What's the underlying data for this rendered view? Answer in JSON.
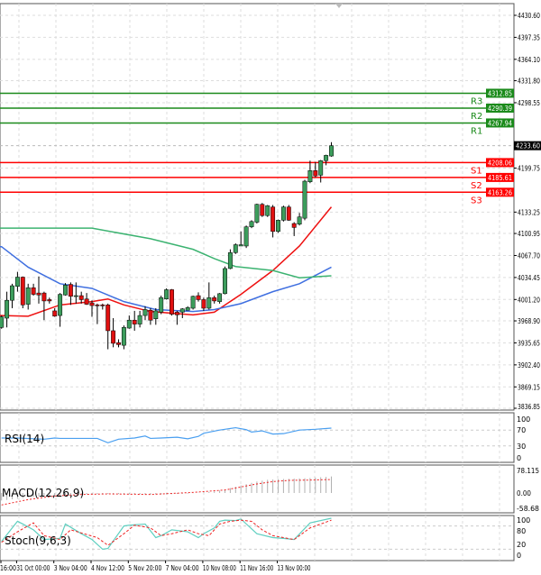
{
  "chart_data": {
    "type": "candlestick",
    "colors": {
      "bull": "#3c9d5c",
      "bear": "#e01010",
      "ma_fast": "#ee1111",
      "ma_mid": "#3f6fe0",
      "ma_slow": "#3cb371",
      "resistance": "#1a8a1a",
      "support": "#ff0000",
      "price_label": "#000000",
      "rsi": "#4a9ff0",
      "stoch_main": "#5fcfc0",
      "stoch_signal": "#ee2222",
      "macd_signal": "#ee2222",
      "macd_hist": "#b0b0b0"
    },
    "price_axis": {
      "ylim": [
        3836.85,
        4430.6
      ],
      "ticks": [
        "4430.60",
        "4397.35",
        "4364.10",
        "4331.80",
        "4298.55",
        "4199.75",
        "4133.25",
        "4100.95",
        "4067.70",
        "4034.45",
        "4001.20",
        "3968.90",
        "3935.65",
        "3902.40",
        "3869.15",
        "3836.85"
      ]
    },
    "time_axis": {
      "labels": [
        "16:00",
        "31 Oct 00:00",
        "3 Nov 04:00",
        "4 Nov 12:00",
        "5 Nov 20:00",
        "7 Nov 04:00",
        "10 Nov 08:00",
        "11 Nov 16:00",
        "13 Nov 00:00"
      ],
      "label_candles": [
        -1,
        3,
        10,
        17,
        24,
        31,
        38,
        45,
        52
      ]
    },
    "current_price": "4233.60",
    "levels": [
      {
        "name": "R3",
        "value": "4312.85",
        "kind": "resistance"
      },
      {
        "name": "R2",
        "value": "4290.39",
        "kind": "resistance"
      },
      {
        "name": "R1",
        "value": "4267.94",
        "kind": "resistance"
      },
      {
        "name": "S1",
        "value": "4208.06",
        "kind": "support"
      },
      {
        "name": "S2",
        "value": "4185.61",
        "kind": "support"
      },
      {
        "name": "S3",
        "value": "4163.26",
        "kind": "support"
      }
    ],
    "candles_ohlc": [
      [
        3959,
        3977,
        3957,
        3975
      ],
      [
        3973,
        4013,
        3959,
        4000
      ],
      [
        4000,
        4025,
        3988,
        4022
      ],
      [
        4021,
        4043,
        4013,
        4035
      ],
      [
        4035,
        4036,
        3988,
        3993
      ],
      [
        3994,
        4025,
        3986,
        4019
      ],
      [
        4019,
        4025,
        4007,
        4009
      ],
      [
        4011,
        4036,
        3995,
        4008
      ],
      [
        4011,
        4013,
        3970,
        3999
      ],
      [
        4001,
        4004,
        3995,
        3999
      ],
      [
        3984,
        3988,
        3975,
        3976
      ],
      [
        3977,
        4011,
        3960,
        4009
      ],
      [
        4008,
        4026,
        4007,
        4023
      ],
      [
        4024,
        4027,
        3993,
        4006
      ],
      [
        4006,
        4027,
        3995,
        4007
      ],
      [
        4007,
        4013,
        3995,
        4001
      ],
      [
        4002,
        4011,
        3993,
        3994
      ],
      [
        3996,
        4000,
        3975,
        3992
      ],
      [
        3993,
        3995,
        3964,
        3992
      ],
      [
        3993,
        3995,
        3986,
        3992
      ],
      [
        3993,
        3995,
        3926,
        3954
      ],
      [
        3954,
        3973,
        3929,
        3935
      ],
      [
        3936,
        3941,
        3929,
        3933
      ],
      [
        3932,
        3962,
        3926,
        3959
      ],
      [
        3958,
        3977,
        3957,
        3970
      ],
      [
        3970,
        3984,
        3954,
        3964
      ],
      [
        3964,
        3984,
        3959,
        3977
      ],
      [
        3977,
        3991,
        3970,
        3986
      ],
      [
        3985,
        3988,
        3963,
        3970
      ],
      [
        3972,
        3988,
        3963,
        3984
      ],
      [
        3982,
        4007,
        3979,
        4004
      ],
      [
        4002,
        4018,
        4001,
        4016
      ],
      [
        4016,
        4017,
        3977,
        3979
      ],
      [
        3982,
        3984,
        3963,
        3978
      ],
      [
        3982,
        3988,
        3973,
        3987
      ],
      [
        3985,
        3991,
        3985,
        3989
      ],
      [
        3988,
        4007,
        3986,
        4006
      ],
      [
        4007,
        4012,
        3998,
        4001
      ],
      [
        4001,
        4004,
        3984,
        3988
      ],
      [
        3988,
        4027,
        3986,
        4004
      ],
      [
        4004,
        4007,
        3995,
        3999
      ],
      [
        3998,
        4011,
        3995,
        4010
      ],
      [
        4010,
        4051,
        4009,
        4048
      ],
      [
        4048,
        4077,
        4047,
        4072
      ],
      [
        4072,
        4086,
        4070,
        4084
      ],
      [
        4082,
        4104,
        4082,
        4084
      ],
      [
        4082,
        4113,
        4079,
        4111
      ],
      [
        4111,
        4121,
        4109,
        4119
      ],
      [
        4118,
        4146,
        4116,
        4145
      ],
      [
        4145,
        4147,
        4126,
        4128
      ],
      [
        4128,
        4144,
        4126,
        4143
      ],
      [
        4141,
        4144,
        4095,
        4104
      ],
      [
        4104,
        4122,
        4102,
        4121
      ],
      [
        4121,
        4143,
        4119,
        4141
      ],
      [
        4141,
        4144,
        4120,
        4121
      ],
      [
        4116,
        4118,
        4097,
        4110
      ],
      [
        4115,
        4132,
        4113,
        4126
      ],
      [
        4124,
        4182,
        4121,
        4180
      ],
      [
        4179,
        4211,
        4177,
        4196
      ],
      [
        4196,
        4209,
        4186,
        4188
      ],
      [
        4189,
        4212,
        4178,
        4211
      ],
      [
        4211,
        4220,
        4204,
        4219
      ],
      [
        4218,
        4239,
        4217,
        4233.6
      ]
    ],
    "moving_averages": [
      {
        "key": "ma_fast",
        "candles": [
          0,
          5,
          11,
          17,
          20,
          23,
          28,
          36,
          40,
          45,
          51,
          56,
          62
        ],
        "values": [
          3977,
          3976,
          3993,
          3998,
          4002,
          3993,
          3983,
          3978,
          3982,
          4009,
          4045,
          4082,
          4141
        ]
      },
      {
        "key": "ma_mid",
        "candles": [
          0,
          5,
          11,
          17,
          23,
          29,
          36,
          40,
          45,
          51,
          56,
          62
        ],
        "values": [
          4081,
          4050,
          4025,
          4018,
          3998,
          3986,
          3983,
          3986,
          3995,
          4013,
          4025,
          4050
        ]
      },
      {
        "key": "ma_slow",
        "candles": [
          0,
          17,
          28,
          36,
          40,
          44,
          51,
          56,
          62
        ],
        "values": [
          4109,
          4109,
          4093,
          4077,
          4063,
          4051,
          4045,
          4034,
          4037
        ]
      }
    ],
    "rsi": {
      "label": "RSI(14)",
      "ticks": [
        "100",
        "70",
        "30",
        "0"
      ],
      "levels": [
        30,
        70
      ],
      "candles": [
        0,
        3,
        8,
        10,
        11,
        13,
        16,
        18,
        20,
        22,
        25,
        27,
        28,
        30,
        33,
        35,
        37,
        38,
        41,
        42,
        44,
        46,
        47,
        49,
        51,
        53,
        56,
        59,
        62
      ],
      "values": [
        50,
        50,
        47,
        50,
        49,
        49,
        49,
        49,
        38,
        47,
        50,
        55,
        49,
        50,
        52,
        48,
        54,
        62,
        70,
        72,
        76,
        71,
        65,
        68,
        60,
        61,
        70,
        72,
        75
      ]
    },
    "macd": {
      "label": "MACD(12,26,9)",
      "ticks": [
        "78.115",
        "0.00",
        "-58.68"
      ],
      "hist_candles": [
        0,
        5,
        10,
        15,
        20,
        25,
        30,
        35,
        40,
        42,
        45,
        48,
        50,
        52,
        55,
        58,
        62
      ],
      "hist_values": [
        -25,
        -15,
        -8,
        -4,
        -3,
        -4,
        -5,
        -2,
        5,
        12,
        25,
        38,
        44,
        46,
        48,
        50,
        55
      ],
      "signal_candles": [
        0,
        5,
        10,
        15,
        20,
        28,
        36,
        42,
        45,
        48,
        51,
        54,
        58,
        62
      ],
      "signal_values": [
        -40,
        -22,
        -10,
        -5,
        -3,
        -5,
        2,
        10,
        20,
        30,
        38,
        42,
        43,
        45
      ]
    },
    "stoch": {
      "label": "Stoch(9,6,3)",
      "ticks": [
        "100",
        "80",
        "20",
        "0"
      ],
      "levels": [
        20,
        80
      ],
      "main_candles": [
        0,
        3,
        4,
        6,
        8,
        11,
        12,
        15,
        17,
        19,
        20,
        23,
        24,
        27,
        29,
        30,
        32,
        35,
        37,
        38,
        40,
        41,
        42,
        44,
        45,
        48,
        51,
        53,
        55,
        58,
        62
      ],
      "main_values": [
        40,
        92,
        85,
        70,
        45,
        48,
        85,
        60,
        45,
        20,
        22,
        80,
        82,
        85,
        50,
        55,
        70,
        65,
        50,
        60,
        75,
        92,
        95,
        94,
        98,
        60,
        50,
        48,
        45,
        88,
        100
      ],
      "signal_candles": [
        0,
        3,
        6,
        8,
        11,
        13,
        15,
        18,
        20,
        23,
        25,
        28,
        30,
        32,
        35,
        37,
        39,
        41,
        43,
        45,
        47,
        49,
        51,
        53,
        55,
        58,
        62
      ],
      "signal_values": [
        38,
        65,
        88,
        55,
        45,
        70,
        62,
        50,
        30,
        60,
        82,
        75,
        55,
        60,
        70,
        60,
        55,
        85,
        92,
        95,
        92,
        70,
        55,
        50,
        45,
        75,
        95
      ]
    }
  }
}
